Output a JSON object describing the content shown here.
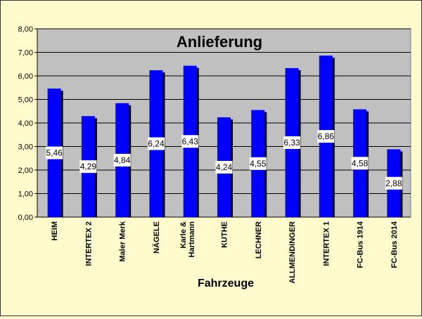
{
  "chart_data": {
    "type": "bar",
    "title": "Anlieferung",
    "xlabel": "Fahrzeuge",
    "ylabel": "",
    "ylim": [
      0,
      8
    ],
    "y_ticks": [
      "0,00",
      "1,00",
      "2,00",
      "3,00",
      "4,00",
      "5,00",
      "6,00",
      "7,00",
      "8,00"
    ],
    "categories": [
      "HEIM",
      "INTERTEX 2",
      "Maler Merk",
      "NÄGELE",
      "Karle & Hartmann",
      "KUTHE",
      "LECHNER",
      "ALLMENDINGER",
      "INTERTEX 1",
      "FC-Bus 1914",
      "FC-Bus 2014"
    ],
    "values": [
      5.46,
      4.29,
      4.84,
      6.24,
      6.43,
      4.24,
      4.55,
      6.33,
      6.86,
      4.58,
      2.88
    ],
    "value_labels": [
      "5,46",
      "4,29",
      "4,84",
      "6,24",
      "6,43",
      "4,24",
      "4,55",
      "6,33",
      "6,86",
      "4,58",
      "2,88"
    ],
    "grid": true,
    "colors": {
      "bar": "#0000ff",
      "bar_shadow": "#000000",
      "plot_background": "#c0c0c0",
      "page_background": "#fffbcc",
      "grid": "#000000"
    }
  }
}
